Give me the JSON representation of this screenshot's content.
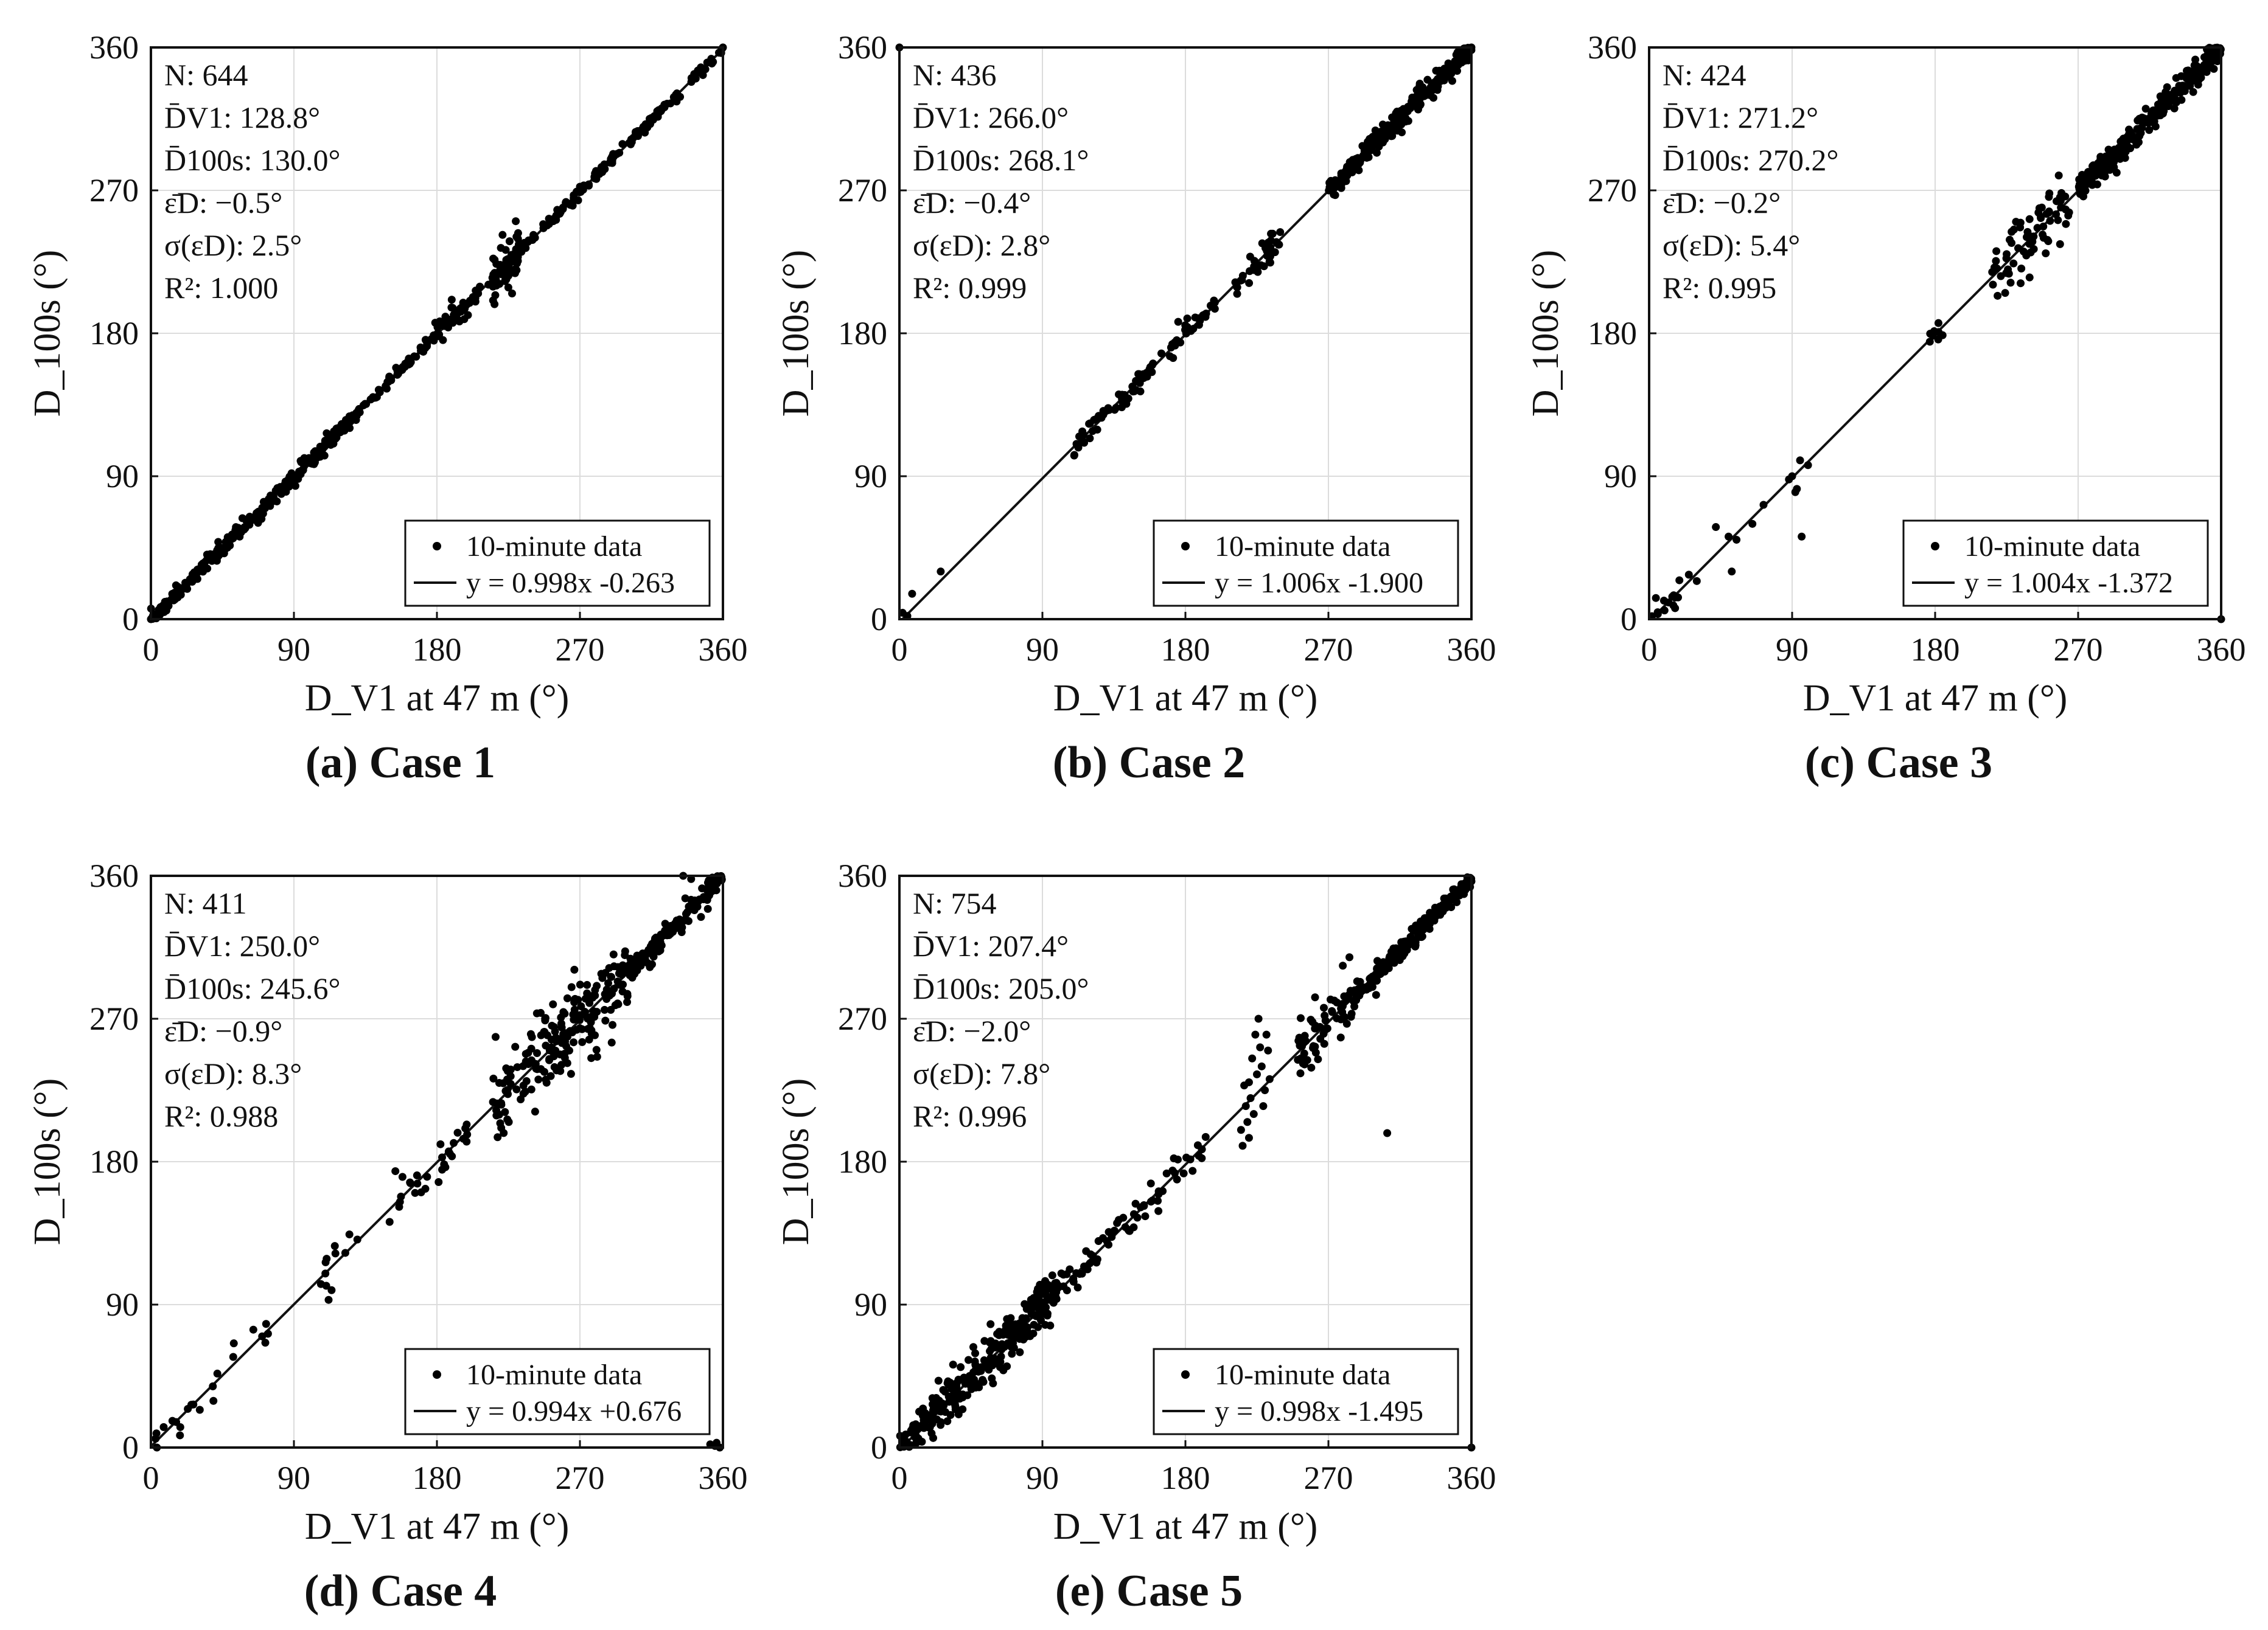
{
  "chart_data": [
    {
      "type": "scatter",
      "caption": "(a) Case 1",
      "xlabel": "D_V1 at 47 m (°)",
      "ylabel": "D_100s (°)",
      "xlim": [
        0,
        360
      ],
      "ylim": [
        0,
        360
      ],
      "xticks": [
        "0",
        "90",
        "180",
        "270",
        "360"
      ],
      "yticks": [
        "0",
        "90",
        "180",
        "270",
        "360"
      ],
      "grid": true,
      "stats": [
        "N: 644",
        "D̄V1: 128.8°",
        "D̄100s: 130.0°",
        "ε̄D: −0.5°",
        "σ(εD): 2.5°",
        "R²: 1.000"
      ],
      "legend": {
        "position": "bottom-right",
        "scatter_label": "10-minute data",
        "fit_label": "y = 0.998x -0.263"
      },
      "fit": {
        "slope": 0.998,
        "intercept": -0.263
      },
      "clusters": [
        {
          "x": [
            0,
            130
          ],
          "noise": 2.5,
          "n": 300
        },
        {
          "x": [
            130,
            360
          ],
          "noise": 1.5,
          "n": 260
        },
        {
          "x": [
            215,
            232
          ],
          "noise": 9,
          "n": 60
        },
        {
          "x": [
            178,
            200
          ],
          "noise": 5,
          "n": 24
        }
      ],
      "extra_points": [
        [
          0,
          0
        ],
        [
          360,
          360
        ],
        [
          150,
          152
        ]
      ]
    },
    {
      "type": "scatter",
      "caption": "(b) Case 2",
      "xlabel": "D_V1 at 47 m (°)",
      "ylabel": "D_100s (°)",
      "xlim": [
        0,
        360
      ],
      "ylim": [
        0,
        360
      ],
      "xticks": [
        "0",
        "90",
        "180",
        "270",
        "360"
      ],
      "yticks": [
        "0",
        "90",
        "180",
        "270",
        "360"
      ],
      "grid": true,
      "stats": [
        "N: 436",
        "D̄V1: 266.0°",
        "D̄100s: 268.1°",
        "ε̄D: −0.4°",
        "σ(εD): 2.8°",
        "R²: 0.999"
      ],
      "legend": {
        "position": "bottom-right",
        "scatter_label": "10-minute data",
        "fit_label": "y = 1.006x -1.900"
      },
      "fit": {
        "slope": 1.006,
        "intercept": -1.9
      },
      "clusters": [
        {
          "x": [
            110,
            165
          ],
          "noise": 3,
          "n": 60
        },
        {
          "x": [
            170,
            200
          ],
          "noise": 4,
          "n": 30
        },
        {
          "x": [
            210,
            240
          ],
          "noise": 4,
          "n": 40
        },
        {
          "x": [
            270,
            360
          ],
          "noise": 3.5,
          "n": 290
        }
      ],
      "extra_points": [
        [
          0,
          360
        ],
        [
          2,
          4
        ],
        [
          5,
          2
        ],
        [
          8,
          16
        ],
        [
          26,
          30
        ],
        [
          110,
          103
        ],
        [
          360,
          360
        ]
      ]
    },
    {
      "type": "scatter",
      "caption": "(c) Case 3",
      "xlabel": "D_V1 at 47 m (°)",
      "ylabel": "D_100s (°)",
      "xlim": [
        0,
        360
      ],
      "ylim": [
        0,
        360
      ],
      "xticks": [
        "0",
        "90",
        "180",
        "270",
        "360"
      ],
      "yticks": [
        "0",
        "90",
        "180",
        "270",
        "360"
      ],
      "grid": true,
      "stats": [
        "N: 424",
        "D̄V1: 271.2°",
        "D̄100s: 270.2°",
        "ε̄D: −0.2°",
        "σ(εD): 5.4°",
        "R²: 0.995"
      ],
      "legend": {
        "position": "bottom-right",
        "scatter_label": "10-minute data",
        "fit_label": "y = 1.004x -1.372"
      },
      "fit": {
        "slope": 1.004,
        "intercept": -1.372
      },
      "clusters": [
        {
          "x": [
            270,
            360
          ],
          "noise": 4,
          "n": 300
        },
        {
          "x": [
            215,
            265
          ],
          "noise": 11,
          "n": 70
        },
        {
          "x": [
            0,
            20
          ],
          "noise": 4,
          "n": 14
        },
        {
          "x": [
            176,
            186
          ],
          "noise": 3,
          "n": 8
        }
      ],
      "extra_points": [
        [
          42,
          58
        ],
        [
          50,
          52
        ],
        [
          55,
          50
        ],
        [
          65,
          60
        ],
        [
          72,
          72
        ],
        [
          88,
          88
        ],
        [
          90,
          90
        ],
        [
          92,
          80
        ],
        [
          93,
          82
        ],
        [
          95,
          100
        ],
        [
          100,
          97
        ],
        [
          96,
          52
        ],
        [
          25,
          28
        ],
        [
          30,
          24
        ],
        [
          52,
          30
        ],
        [
          360,
          0
        ]
      ]
    },
    {
      "type": "scatter",
      "caption": "(d) Case 4",
      "xlabel": "D_V1 at 47 m (°)",
      "ylabel": "D_100s (°)",
      "xlim": [
        0,
        360
      ],
      "ylim": [
        0,
        360
      ],
      "xticks": [
        "0",
        "90",
        "180",
        "270",
        "360"
      ],
      "yticks": [
        "0",
        "90",
        "180",
        "270",
        "360"
      ],
      "grid": true,
      "stats": [
        "N: 411",
        "D̄V1: 250.0°",
        "D̄100s: 245.6°",
        "ε̄D: −0.9°",
        "σ(εD): 8.3°",
        "R²: 0.988"
      ],
      "legend": {
        "position": "bottom-right",
        "scatter_label": "10-minute data",
        "fit_label": "y = 0.994x +0.676"
      },
      "fit": {
        "slope": 0.994,
        "intercept": 0.676
      },
      "clusters": [
        {
          "x": [
            215,
            300
          ],
          "noise": 13,
          "n": 200
        },
        {
          "x": [
            300,
            360
          ],
          "noise": 4,
          "n": 130
        },
        {
          "x": [
            150,
            200
          ],
          "noise": 6,
          "n": 30
        },
        {
          "x": [
            100,
            130
          ],
          "noise": 6,
          "n": 12
        },
        {
          "x": [
            0,
            75
          ],
          "noise": 5,
          "n": 20
        }
      ],
      "extra_points": [
        [
          352,
          2
        ],
        [
          355,
          1
        ],
        [
          358,
          0
        ],
        [
          356,
          3
        ],
        [
          290,
          255
        ],
        [
          335,
          360
        ],
        [
          340,
          358
        ],
        [
          70,
          70
        ],
        [
          72,
          66
        ]
      ]
    },
    {
      "type": "scatter",
      "caption": "(e) Case 5",
      "xlabel": "D_V1 at 47 m (°)",
      "ylabel": "D_100s (°)",
      "xlim": [
        0,
        360
      ],
      "ylim": [
        0,
        360
      ],
      "xticks": [
        "0",
        "90",
        "180",
        "270",
        "360"
      ],
      "yticks": [
        "0",
        "90",
        "180",
        "270",
        "360"
      ],
      "grid": true,
      "stats": [
        "N: 754",
        "D̄V1: 207.4°",
        "D̄100s: 205.0°",
        "ε̄D: −2.0°",
        "σ(εD): 7.8°",
        "R²: 0.996"
      ],
      "legend": {
        "position": "bottom-right",
        "scatter_label": "10-minute data",
        "fit_label": "y = 0.998x -1.495"
      },
      "fit": {
        "slope": 0.998,
        "intercept": -1.495
      },
      "clusters": [
        {
          "x": [
            0,
            100
          ],
          "noise": 7,
          "n": 300
        },
        {
          "x": [
            100,
            200
          ],
          "noise": 5,
          "n": 70
        },
        {
          "x": [
            250,
            285
          ],
          "noise": 11,
          "n": 60
        },
        {
          "x": [
            285,
            360
          ],
          "noise": 3,
          "n": 230
        }
      ],
      "extra_points": [
        [
          215,
          200
        ],
        [
          218,
          215
        ],
        [
          220,
          230
        ],
        [
          222,
          245
        ],
        [
          224,
          260
        ],
        [
          226,
          270
        ],
        [
          228,
          240
        ],
        [
          230,
          225
        ],
        [
          232,
          250
        ],
        [
          216,
          190
        ],
        [
          219,
          205
        ],
        [
          221,
          220
        ],
        [
          225,
          235
        ],
        [
          229,
          215
        ],
        [
          231,
          260
        ],
        [
          227,
          252
        ],
        [
          223,
          210
        ],
        [
          217,
          228
        ],
        [
          233,
          232
        ],
        [
          220,
          195
        ],
        [
          307,
          198
        ],
        [
          300,
          285
        ],
        [
          360,
          0
        ],
        [
          355,
          352
        ],
        [
          358,
          358
        ]
      ]
    }
  ]
}
